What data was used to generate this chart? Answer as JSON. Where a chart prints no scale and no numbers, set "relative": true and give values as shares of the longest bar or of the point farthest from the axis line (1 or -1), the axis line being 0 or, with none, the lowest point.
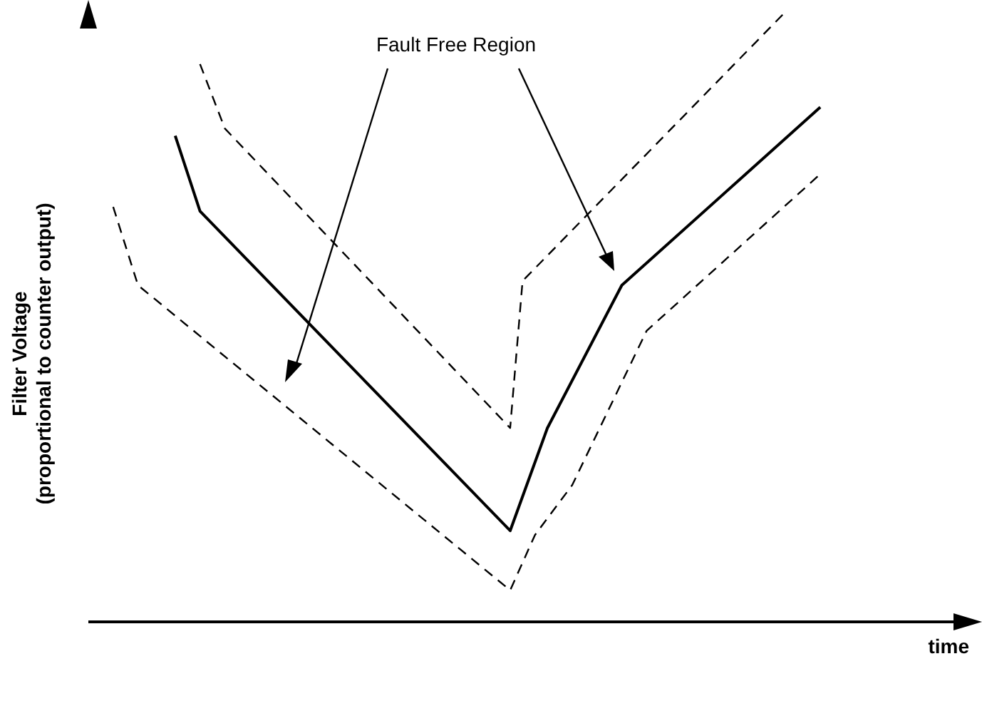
{
  "chart_data": {
    "type": "line",
    "relative": true,
    "xlabel": "time",
    "ylabel": "Filter Voltage\n(proportional to counter output)",
    "annotations": [
      "Fault Free Region"
    ],
    "marker": "none",
    "legend": false,
    "grid": false,
    "categories": [
      null,
      null,
      null,
      null,
      null,
      null,
      null,
      null,
      null,
      null,
      null,
      null,
      null,
      null,
      null,
      null,
      null,
      null,
      null,
      null,
      null,
      null,
      null,
      null,
      null,
      null,
      null,
      null,
      null,
      null,
      null,
      null,
      null,
      null,
      null,
      null,
      null,
      null,
      null,
      null,
      null,
      null,
      null,
      null,
      null,
      null,
      null,
      null,
      null,
      null,
      null,
      null,
      null,
      null,
      null,
      null,
      null,
      null,
      null,
      null,
      null,
      null,
      null,
      null,
      null,
      null,
      null,
      null,
      null,
      null,
      null,
      null
    ],
    "series": [
      {
        "color": "#000000",
        "line_style": "solid",
        "values": [
          null,
          null,
          null,
          null,
          null,
          null,
          null,
          0.8,
          null,
          0.676,
          null,
          null,
          null,
          null,
          null,
          null,
          null,
          null,
          null,
          null,
          null,
          null,
          null,
          null,
          null,
          null,
          null,
          null,
          null,
          null,
          null,
          null,
          null,
          null,
          0.15,
          null,
          null,
          0.319,
          null,
          null,
          null,
          null,
          null,
          0.554,
          null,
          null,
          null,
          null,
          null,
          null,
          null,
          null,
          null,
          null,
          null,
          null,
          null,
          null,
          null,
          0.847,
          null,
          null,
          null,
          null,
          null,
          null,
          null,
          null,
          null,
          null,
          null,
          null
        ]
      },
      {
        "color": "#000000",
        "line_style": "dashed",
        "values": [
          null,
          null,
          null,
          null,
          null,
          null,
          null,
          null,
          null,
          0.918,
          null,
          0.812,
          null,
          null,
          null,
          null,
          null,
          null,
          null,
          null,
          null,
          null,
          null,
          null,
          null,
          null,
          null,
          null,
          null,
          null,
          null,
          null,
          null,
          null,
          0.319,
          0.561,
          null,
          null,
          null,
          null,
          null,
          null,
          null,
          null,
          null,
          null,
          null,
          null,
          null,
          null,
          null,
          null,
          null,
          null,
          null,
          null,
          1,
          null,
          null,
          null,
          null,
          null,
          null,
          null,
          null,
          null,
          null,
          null,
          null,
          null,
          null,
          null
        ]
      },
      {
        "color": "#000000",
        "line_style": "dashed",
        "values": [
          null,
          null,
          0.683,
          null,
          0.554,
          null,
          null,
          null,
          null,
          null,
          null,
          null,
          null,
          null,
          null,
          null,
          null,
          null,
          null,
          null,
          null,
          null,
          null,
          null,
          null,
          null,
          null,
          null,
          null,
          null,
          null,
          null,
          null,
          null,
          0.052,
          null,
          0.143,
          null,
          null,
          0.225,
          null,
          null,
          null,
          null,
          null,
          0.479,
          null,
          null,
          null,
          null,
          null,
          null,
          null,
          null,
          null,
          null,
          null,
          null,
          null,
          0.737,
          null,
          null,
          null,
          null,
          null,
          null,
          null,
          null,
          null,
          null,
          null,
          null
        ]
      }
    ]
  }
}
